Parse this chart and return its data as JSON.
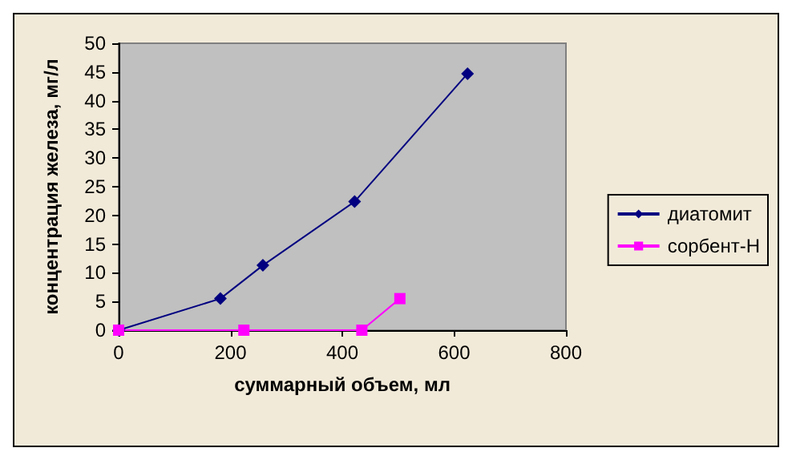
{
  "chart_data": {
    "type": "line",
    "xlabel": "суммарный объем, мл",
    "ylabel": "концентрация железа, мг/л",
    "xlim": [
      0,
      800
    ],
    "xticks": [
      0,
      200,
      400,
      600,
      800
    ],
    "ylim": [
      0,
      50
    ],
    "yticks": [
      0,
      5,
      10,
      15,
      20,
      25,
      30,
      35,
      40,
      45,
      50
    ],
    "grid": false,
    "legend": "right",
    "series": [
      {
        "name": "диатомит",
        "color": "#000080",
        "marker": "diamond",
        "x": [
          0,
          182,
          258,
          422,
          624
        ],
        "values": [
          0,
          5.5,
          11.3,
          22.4,
          44.7
        ]
      },
      {
        "name": "сорбент-Н",
        "color": "#ff00ff",
        "marker": "square",
        "x": [
          0,
          224,
          435,
          503
        ],
        "values": [
          0,
          0,
          0,
          5.5
        ]
      }
    ]
  }
}
